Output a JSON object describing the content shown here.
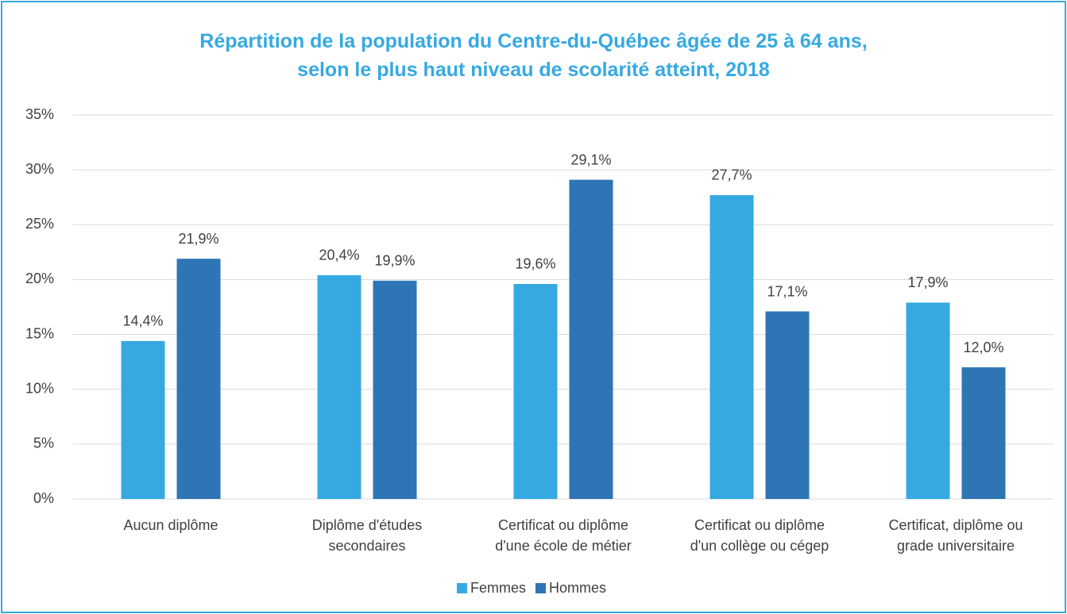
{
  "chart_data": {
    "type": "bar",
    "title": "Répartition de la population du Centre-du-Québec âgée de 25 à 64 ans,\nselon le plus haut niveau de scolarité atteint, 2018",
    "categories": [
      "Aucun diplôme",
      "Diplôme d'études\nsecondaires",
      "Certificat ou diplôme\nd'une école de métier",
      "Certificat ou diplôme\nd'un collège ou cégep",
      "Certificat, diplôme ou\ngrade universitaire"
    ],
    "series": [
      {
        "name": "Femmes",
        "color": "#36a9e1",
        "values": [
          14.4,
          20.4,
          19.6,
          27.7,
          17.9
        ],
        "value_labels": [
          "14,4%",
          "20,4%",
          "19,6%",
          "27,7%",
          "17,9%"
        ]
      },
      {
        "name": "Hommes",
        "color": "#2e75b6",
        "values": [
          21.9,
          19.9,
          29.1,
          17.1,
          12.0
        ],
        "value_labels": [
          "21,9%",
          "19,9%",
          "29,1%",
          "17,1%",
          "12,0%"
        ]
      }
    ],
    "ylim": [
      0,
      35
    ],
    "yticks": [
      {
        "value": 0,
        "label": "0%"
      },
      {
        "value": 5,
        "label": "5%"
      },
      {
        "value": 10,
        "label": "10%"
      },
      {
        "value": 15,
        "label": "15%"
      },
      {
        "value": 20,
        "label": "20%"
      },
      {
        "value": 25,
        "label": "25%"
      },
      {
        "value": 30,
        "label": "30%"
      },
      {
        "value": 35,
        "label": "35%"
      }
    ],
    "grid": true,
    "legend": "bottom"
  }
}
